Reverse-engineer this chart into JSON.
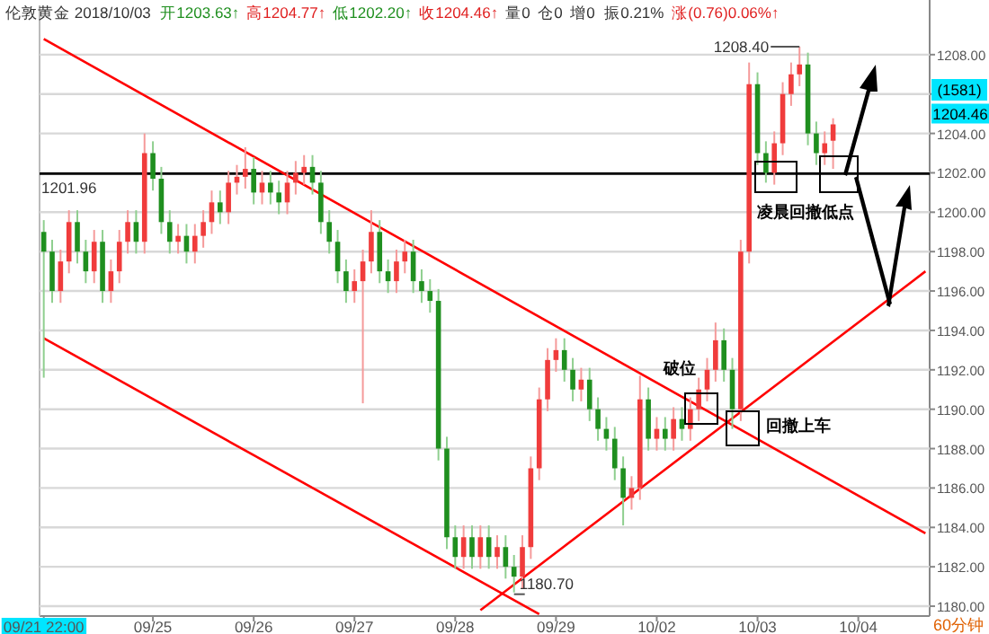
{
  "chart_data": {
    "type": "candlestick",
    "title": "伦敦黄金 2018/10/03",
    "categories": [
      "09/21 22:00",
      null,
      null,
      null,
      null,
      null,
      null,
      null,
      null,
      null,
      null,
      null,
      null,
      "09/25",
      null,
      null,
      null,
      null,
      null,
      null,
      null,
      null,
      null,
      null,
      null,
      "09/26",
      null,
      null,
      null,
      null,
      null,
      null,
      null,
      null,
      null,
      null,
      null,
      "09/27",
      null,
      null,
      null,
      null,
      null,
      null,
      null,
      null,
      null,
      null,
      null,
      "09/28",
      null,
      null,
      null,
      null,
      null,
      null,
      null,
      null,
      null,
      null,
      null,
      "09/29",
      null,
      null,
      null,
      null,
      null,
      null,
      null,
      null,
      null,
      null,
      null,
      "10/02",
      null,
      null,
      null,
      null,
      null,
      null,
      null,
      null,
      null,
      null,
      null,
      "10/03",
      null,
      null,
      null,
      null,
      null,
      null,
      null,
      null,
      null,
      null,
      null,
      "10/04",
      null,
      null,
      null,
      null,
      null,
      null,
      null,
      null
    ],
    "ohlc": [
      [
        1199,
        1199.6,
        1191.6,
        1198
      ],
      [
        1198,
        1198.6,
        1195.4,
        1196
      ],
      [
        1196,
        1198.1,
        1195.4,
        1197.5
      ],
      [
        1197.5,
        1200.1,
        1196.9,
        1199.5
      ],
      [
        1199.5,
        1200.1,
        1197.4,
        1198
      ],
      [
        1198,
        1198.6,
        1196.4,
        1197
      ],
      [
        1197,
        1199.1,
        1196.4,
        1198.5
      ],
      [
        1198.5,
        1199.1,
        1195.4,
        1196
      ],
      [
        1196,
        1197.6,
        1195.4,
        1197
      ],
      [
        1197,
        1199.1,
        1196.4,
        1198.5
      ],
      [
        1198.5,
        1200.1,
        1197.9,
        1199.5
      ],
      [
        1199.5,
        1200.1,
        1197.9,
        1198.5
      ],
      [
        1198.5,
        1204,
        1197.9,
        1203
      ],
      [
        1203,
        1203.6,
        1201.1,
        1201.7
      ],
      [
        1201.7,
        1202.3,
        1198.9,
        1199.5
      ],
      [
        1199.5,
        1200.1,
        1197.9,
        1198.5
      ],
      [
        1198.5,
        1199.4,
        1197.9,
        1198.8
      ],
      [
        1198.8,
        1199.4,
        1197.4,
        1198
      ],
      [
        1198,
        1199.4,
        1197.4,
        1198.8
      ],
      [
        1198.8,
        1200.1,
        1198.2,
        1199.5
      ],
      [
        1199.5,
        1201.1,
        1198.9,
        1200.5
      ],
      [
        1200.5,
        1201.1,
        1199.4,
        1200
      ],
      [
        1200,
        1202.1,
        1199.4,
        1201.5
      ],
      [
        1201.5,
        1202.4,
        1200.9,
        1201.8
      ],
      [
        1201.8,
        1203.3,
        1201.2,
        1202.2
      ],
      [
        1202.2,
        1202.8,
        1200.4,
        1201
      ],
      [
        1201,
        1202.1,
        1200.4,
        1201.5
      ],
      [
        1201.5,
        1202.1,
        1200.4,
        1201
      ],
      [
        1201,
        1201.6,
        1199.9,
        1200.5
      ],
      [
        1200.5,
        1202.1,
        1199.9,
        1201.5
      ],
      [
        1201.5,
        1202.6,
        1200.9,
        1202
      ],
      [
        1202,
        1202.9,
        1201.4,
        1202.3
      ],
      [
        1202.3,
        1202.9,
        1200.9,
        1201.5
      ],
      [
        1201.5,
        1202.1,
        1198.9,
        1199.5
      ],
      [
        1199.5,
        1200.1,
        1197.9,
        1198.5
      ],
      [
        1198.5,
        1199.1,
        1196.4,
        1197
      ],
      [
        1197,
        1197.6,
        1195.4,
        1196
      ],
      [
        1196,
        1197.1,
        1195.4,
        1196.5
      ],
      [
        1196.5,
        1198.1,
        1190.3,
        1197.5
      ],
      [
        1197.5,
        1200.1,
        1196.9,
        1199
      ],
      [
        1199,
        1199.6,
        1196.4,
        1197
      ],
      [
        1197,
        1197.6,
        1195.9,
        1196.5
      ],
      [
        1196.5,
        1198.1,
        1195.9,
        1197.5
      ],
      [
        1197.5,
        1198.6,
        1196.9,
        1198
      ],
      [
        1198,
        1198.6,
        1195.9,
        1196.5
      ],
      [
        1196.5,
        1197.1,
        1195.4,
        1196
      ],
      [
        1196,
        1196.6,
        1194.9,
        1195.5
      ],
      [
        1195.5,
        1196.1,
        1187.4,
        1188
      ],
      [
        1188,
        1188.6,
        1182.9,
        1183.5
      ],
      [
        1183.5,
        1184.1,
        1181.9,
        1182.5
      ],
      [
        1182.5,
        1184.1,
        1181.9,
        1183.5
      ],
      [
        1183.5,
        1184.1,
        1181.9,
        1182.5
      ],
      [
        1182.5,
        1184.1,
        1181.9,
        1183.5
      ],
      [
        1183.5,
        1184.1,
        1181.9,
        1182.5
      ],
      [
        1182.5,
        1183.6,
        1181.9,
        1183
      ],
      [
        1183,
        1183.6,
        1181.4,
        1182
      ],
      [
        1182,
        1182.6,
        1180.7,
        1181.5
      ],
      [
        1181.5,
        1183.6,
        1180.9,
        1183
      ],
      [
        1183,
        1187.6,
        1182.4,
        1187
      ],
      [
        1187,
        1191.1,
        1186.4,
        1190.5
      ],
      [
        1190.5,
        1193.1,
        1189.9,
        1192.5
      ],
      [
        1192.5,
        1193.6,
        1191.9,
        1193
      ],
      [
        1193,
        1193.6,
        1191.4,
        1192
      ],
      [
        1192,
        1192.6,
        1190.4,
        1191
      ],
      [
        1191,
        1192.1,
        1190.4,
        1191.5
      ],
      [
        1191.5,
        1192.1,
        1189.4,
        1190
      ],
      [
        1190,
        1190.6,
        1188.4,
        1189
      ],
      [
        1189,
        1189.6,
        1187.9,
        1188.5
      ],
      [
        1188.5,
        1189.1,
        1186.4,
        1187
      ],
      [
        1187,
        1187.6,
        1184.1,
        1185.5
      ],
      [
        1185.5,
        1186.6,
        1184.9,
        1186
      ],
      [
        1186,
        1191.7,
        1185.4,
        1190.5
      ],
      [
        1190.5,
        1191.1,
        1187.9,
        1188.5
      ],
      [
        1188.5,
        1189.6,
        1187.9,
        1189
      ],
      [
        1189,
        1189.6,
        1187.9,
        1188.5
      ],
      [
        1188.5,
        1190.1,
        1187.9,
        1189.5
      ],
      [
        1189.5,
        1190.1,
        1188.4,
        1189
      ],
      [
        1189,
        1190.6,
        1188.4,
        1190
      ],
      [
        1190,
        1191.6,
        1189.4,
        1191
      ],
      [
        1191,
        1192.6,
        1190.4,
        1192
      ],
      [
        1192,
        1194.4,
        1191.4,
        1193.5
      ],
      [
        1193.5,
        1194.1,
        1191.4,
        1192
      ],
      [
        1192,
        1192.6,
        1189,
        1190
      ],
      [
        1190,
        1198.6,
        1189.4,
        1198
      ],
      [
        1198,
        1207.6,
        1197.4,
        1206.5
      ],
      [
        1206.5,
        1207.1,
        1202.4,
        1203
      ],
      [
        1203,
        1203.6,
        1201.5,
        1202
      ],
      [
        1202,
        1204.1,
        1201.4,
        1203.5
      ],
      [
        1203.5,
        1206.6,
        1202.9,
        1206
      ],
      [
        1206,
        1207.6,
        1205.4,
        1207
      ],
      [
        1207,
        1208.4,
        1206.4,
        1207.5
      ],
      [
        1207.5,
        1208.1,
        1203.4,
        1204
      ],
      [
        1204,
        1204.6,
        1202.4,
        1203
      ],
      [
        1203,
        1204.1,
        1202.4,
        1203.5
      ],
      [
        1203.63,
        1204.77,
        1202.2,
        1204.46
      ],
      null,
      null,
      null,
      null,
      null,
      null,
      null,
      null,
      null,
      null,
      null
    ],
    "series": [
      {
        "type": "line",
        "color": "#ff0000",
        "values": [
          1208.8,
          null,
          null,
          null,
          null,
          null,
          null,
          null,
          null,
          null,
          null,
          null,
          null,
          null,
          null,
          null,
          null,
          null,
          null,
          null,
          null,
          null,
          null,
          null,
          null,
          null,
          null,
          null,
          null,
          null,
          null,
          null,
          null,
          null,
          null,
          null,
          null,
          null,
          null,
          null,
          null,
          null,
          null,
          null,
          null,
          null,
          null,
          null,
          null,
          null,
          null,
          null,
          null,
          null,
          null,
          null,
          null,
          null,
          null,
          null,
          null,
          null,
          null,
          null,
          null,
          null,
          null,
          null,
          null,
          null,
          null,
          null,
          null,
          null,
          null,
          null,
          null,
          null,
          null,
          null,
          null,
          null,
          null,
          null,
          null,
          null,
          null,
          null,
          null,
          null,
          null,
          null,
          null,
          null,
          null,
          null,
          null,
          null,
          null,
          null,
          null,
          null,
          null,
          null,
          null,
          1183.7
        ]
      },
      {
        "type": "line",
        "color": "#ff0000",
        "values": [
          1193.6,
          null,
          null,
          null,
          null,
          null,
          null,
          null,
          null,
          null,
          null,
          null,
          null,
          null,
          null,
          null,
          null,
          null,
          null,
          null,
          null,
          null,
          null,
          null,
          null,
          null,
          null,
          null,
          null,
          null,
          null,
          null,
          null,
          null,
          null,
          null,
          null,
          null,
          null,
          null,
          null,
          null,
          null,
          null,
          null,
          null,
          null,
          null,
          null,
          null,
          null,
          null,
          null,
          null,
          null,
          null,
          null,
          null,
          null,
          1179.6,
          null,
          null,
          null,
          null,
          null,
          null,
          null,
          null,
          null,
          null,
          null,
          null,
          null,
          null,
          null,
          null,
          null,
          null,
          null,
          null,
          null,
          null,
          null,
          null,
          null,
          null,
          null,
          null,
          null,
          null,
          null,
          null,
          null,
          null,
          null,
          null,
          null,
          null,
          null,
          null,
          null,
          null,
          null,
          null,
          null,
          null
        ]
      },
      {
        "type": "line",
        "color": "#ff0000",
        "values": [
          null,
          null,
          null,
          null,
          null,
          null,
          null,
          null,
          null,
          null,
          null,
          null,
          null,
          null,
          null,
          null,
          null,
          null,
          null,
          null,
          null,
          null,
          null,
          null,
          null,
          null,
          null,
          null,
          null,
          null,
          null,
          null,
          null,
          null,
          null,
          null,
          null,
          null,
          null,
          null,
          null,
          null,
          null,
          null,
          null,
          null,
          null,
          null,
          null,
          null,
          null,
          null,
          1179.8,
          null,
          null,
          null,
          null,
          null,
          null,
          null,
          null,
          null,
          null,
          null,
          null,
          null,
          null,
          null,
          null,
          null,
          null,
          null,
          null,
          null,
          null,
          null,
          null,
          null,
          null,
          null,
          null,
          null,
          null,
          null,
          null,
          null,
          null,
          null,
          null,
          null,
          null,
          null,
          null,
          null,
          null,
          null,
          null,
          null,
          null,
          null,
          null,
          null,
          null,
          null,
          null,
          1197.0
        ]
      }
    ],
    "ylim": [
      1179.5,
      1210.5
    ],
    "yticks": [
      {
        "value": 1180,
        "label": "1180.00"
      },
      {
        "value": 1182,
        "label": "1182.00"
      },
      {
        "value": 1184,
        "label": "1184.00"
      },
      {
        "value": 1186,
        "label": "1186.00"
      },
      {
        "value": 1188,
        "label": "1188.00"
      },
      {
        "value": 1190,
        "label": "1190.00"
      },
      {
        "value": 1192,
        "label": "1192.00"
      },
      {
        "value": 1194,
        "label": "1194.00"
      },
      {
        "value": 1196,
        "label": "1196.00"
      },
      {
        "value": 1198,
        "label": "1198.00"
      },
      {
        "value": 1200,
        "label": "1200.00"
      },
      {
        "value": 1202,
        "label": "1202.00"
      },
      {
        "value": 1204,
        "label": "1204.00"
      },
      {
        "value": 1206,
        "label": null
      },
      {
        "value": 1208,
        "label": "1208.00"
      }
    ],
    "grid": "y",
    "ref_lines": [
      {
        "axis": "y",
        "value": 1201.96,
        "label": "1201.96",
        "color": "#000000"
      }
    ],
    "annotations": [
      "开1203.63↑",
      "高1204.77↑",
      "低1202.20↑",
      "收1204.46↑",
      "量0",
      "仓0",
      "增0",
      "振0.21%",
      "涨(0.76)0.06%↑",
      "1208.40",
      "1180.70",
      {
        "text": "(1581)"
      },
      "1204.46",
      "凌晨回撤低点",
      "破位",
      "回撤上车",
      "60分钟"
    ]
  }
}
